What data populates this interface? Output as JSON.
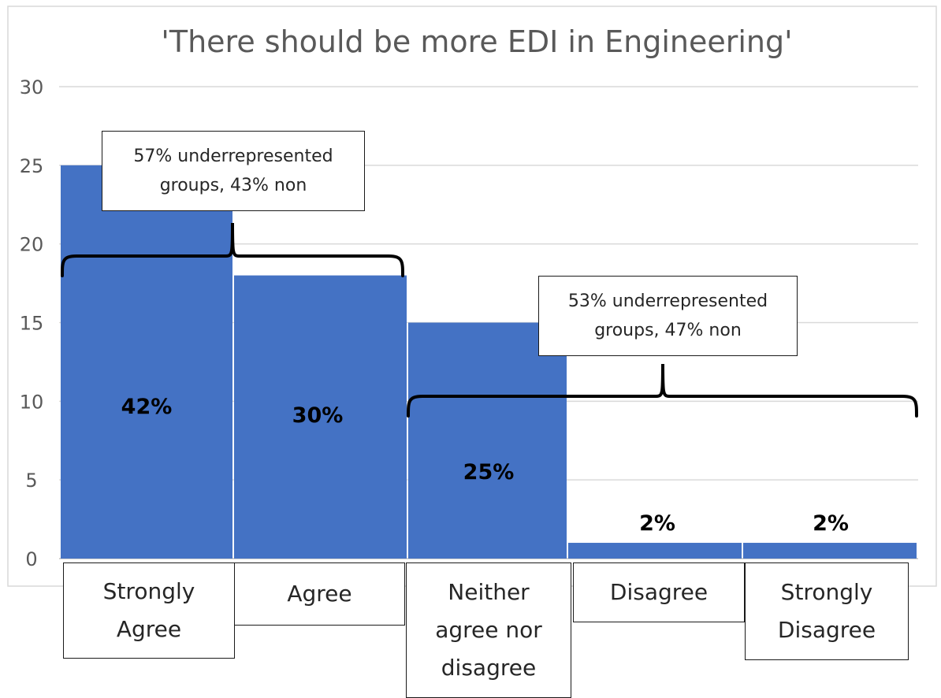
{
  "chart_data": {
    "type": "bar",
    "title": "'There should be more EDI in Engineering'",
    "xlabel": "",
    "ylabel": "",
    "ylim": [
      0,
      30
    ],
    "yticks": [
      0,
      5,
      10,
      15,
      20,
      25,
      30
    ],
    "grid": true,
    "categories": [
      "Strongly\nAgree",
      "Agree",
      "Neither\nagree nor\ndisagree",
      "Disagree",
      "Strongly\nDisagree"
    ],
    "values": [
      25,
      18,
      15,
      1,
      1
    ],
    "data_labels": [
      "42%",
      "30%",
      "25%",
      "2%",
      "2%"
    ],
    "bar_color": "#4472C4",
    "annotations": [
      {
        "text": "57% underrepresented\ngroups, 43% non",
        "spans": [
          "Strongly\nAgree",
          "Agree"
        ]
      },
      {
        "text": "53% underrepresented\ngroups, 47% non",
        "spans": [
          "Neither\nagree nor\ndisagree",
          "Disagree",
          "Strongly\nDisagree"
        ]
      }
    ]
  }
}
